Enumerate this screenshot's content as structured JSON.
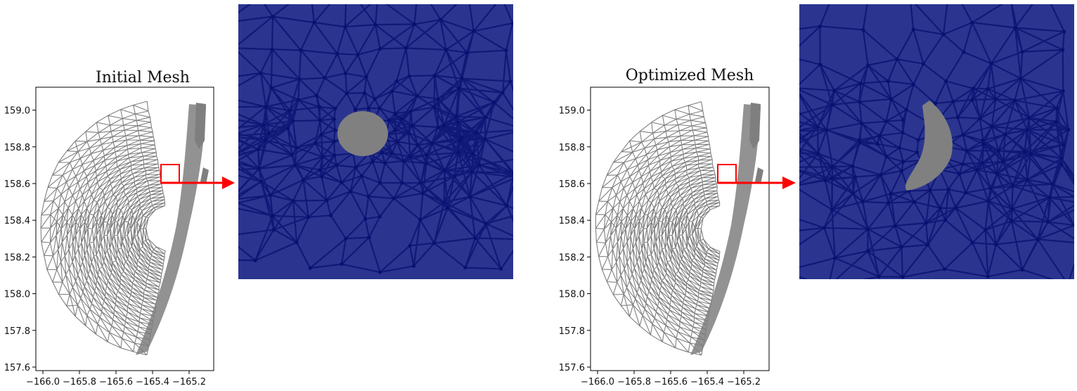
{
  "panels": [
    {
      "title": "Initial Mesh",
      "x_ticks": [
        "−166.0",
        "−165.8",
        "−165.6",
        "−165.4",
        "−165.2"
      ],
      "y_ticks": [
        "157.6",
        "157.8",
        "158.0",
        "158.2",
        "158.4",
        "158.6",
        "158.8",
        "159.0"
      ]
    },
    {
      "title": "Optimized Mesh",
      "x_ticks": [
        "−166.0",
        "−165.8",
        "−165.6",
        "−165.4",
        "−165.2"
      ],
      "y_ticks": [
        "157.6",
        "157.8",
        "158.0",
        "158.2",
        "158.4",
        "158.6",
        "158.8",
        "159.0"
      ]
    }
  ],
  "colors": {
    "mesh": "#7f7f7f",
    "highlight": "#ff0000",
    "zoom_background": "#2b3590",
    "zoom_edges": "#0a1070",
    "hole": "#808080"
  }
}
